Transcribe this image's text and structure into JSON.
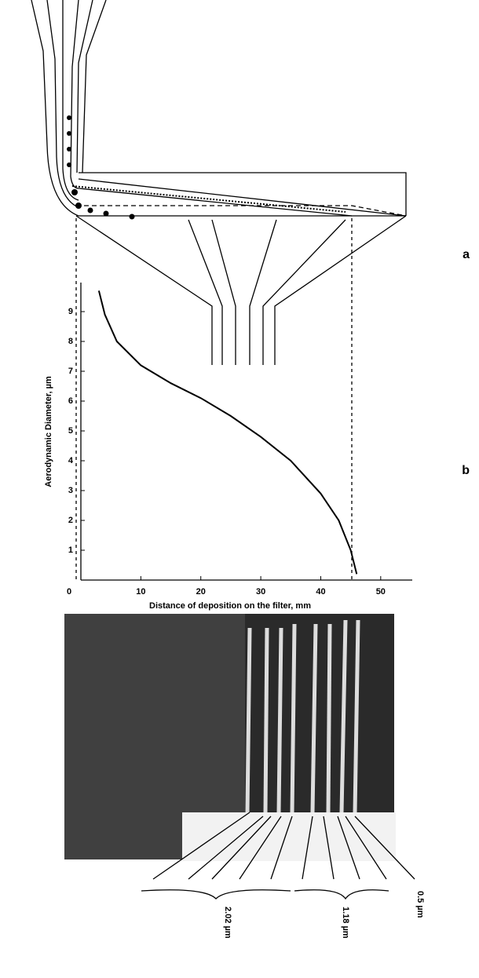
{
  "chart_data": {
    "type": "line",
    "x_label": "Distance of deposition on the filter, mm",
    "y_label": "Aerodynamic Diameter, µm",
    "x": [
      3,
      4,
      6,
      10,
      15,
      20,
      25,
      30,
      35,
      40,
      43,
      45,
      46
    ],
    "series": [
      {
        "color": "#000000",
        "values": [
          9.7,
          8.9,
          8.0,
          7.2,
          6.6,
          6.1,
          5.5,
          4.8,
          4.0,
          2.9,
          2.0,
          1.0,
          0.2
        ]
      }
    ],
    "xlim": [
      0,
      55
    ],
    "ylim": [
      0,
      10
    ],
    "xticks": [
      0,
      10,
      20,
      30,
      40,
      50
    ],
    "yticks": [
      1,
      2,
      3,
      4,
      5,
      6,
      7,
      8,
      9
    ]
  },
  "panel_labels": [
    "a",
    "b"
  ],
  "photo_labels": [
    "2.02 µm",
    "1.18 µm",
    "0.5 µm"
  ]
}
